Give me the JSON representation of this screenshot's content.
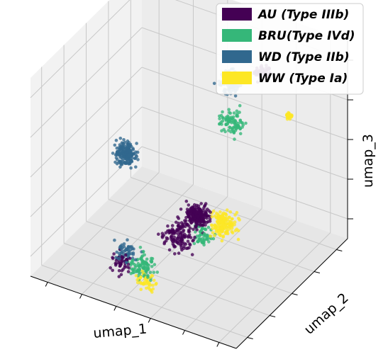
{
  "chart_data": {
    "type": "scatter",
    "projection": "3d",
    "title": "",
    "xlabel": "umap_1",
    "ylabel": "umap_2",
    "zlabel": "umap_3",
    "grid": true,
    "legend_position": "top-right",
    "x_ticks": 6,
    "y_ticks": 5,
    "z_ticks": 5,
    "series": [
      {
        "name": "AU (Type IIIb)",
        "color": "#440154",
        "clusters": [
          {
            "x": 0.7,
            "y": 0.2,
            "z": 0.45,
            "spread": 0.07,
            "count": 230
          },
          {
            "x": 0.6,
            "y": 0.22,
            "z": 0.3,
            "spread": 0.09,
            "count": 130
          },
          {
            "x": 0.74,
            "y": 0.72,
            "z": 0.9,
            "spread": 0.05,
            "count": 70
          },
          {
            "x": 0.38,
            "y": 0.1,
            "z": 0.15,
            "spread": 0.07,
            "count": 50
          }
        ]
      },
      {
        "name": "BRU(Type IVd)",
        "color": "#35b779",
        "clusters": [
          {
            "x": 0.48,
            "y": 0.12,
            "z": 0.16,
            "spread": 0.08,
            "count": 100
          },
          {
            "x": 0.68,
            "y": 0.55,
            "z": 0.72,
            "spread": 0.08,
            "count": 90
          },
          {
            "x": 0.72,
            "y": 0.22,
            "z": 0.35,
            "spread": 0.07,
            "count": 60
          }
        ]
      },
      {
        "name": "WD (Type IIb)",
        "color": "#31688e",
        "clusters": [
          {
            "x": 0.22,
            "y": 0.45,
            "z": 0.45,
            "spread": 0.07,
            "count": 190
          },
          {
            "x": 0.62,
            "y": 0.65,
            "z": 0.84,
            "spread": 0.07,
            "count": 110
          },
          {
            "x": 0.4,
            "y": 0.12,
            "z": 0.2,
            "spread": 0.06,
            "count": 60
          }
        ]
      },
      {
        "name": "WW (Type Ia)",
        "color": "#fde725",
        "clusters": [
          {
            "x": 0.78,
            "y": 0.3,
            "z": 0.38,
            "spread": 0.08,
            "count": 160
          },
          {
            "x": 0.92,
            "y": 0.62,
            "z": 0.8,
            "spread": 0.02,
            "count": 30
          },
          {
            "x": 0.52,
            "y": 0.08,
            "z": 0.12,
            "spread": 0.06,
            "count": 50
          }
        ]
      }
    ]
  }
}
